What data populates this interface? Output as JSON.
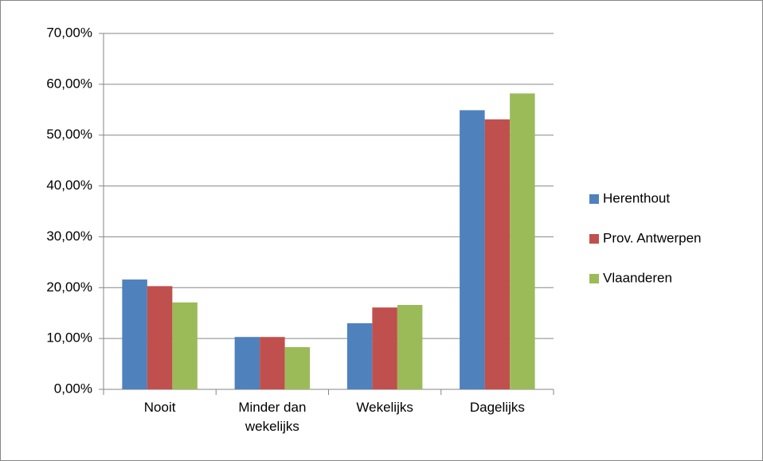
{
  "chart_data": {
    "type": "bar",
    "categories": [
      "Nooit",
      "Minder dan wekelijks",
      "Wekelijks",
      "Dagelijks"
    ],
    "series": [
      {
        "name": "Herenthout",
        "color": "#4f81bd",
        "values": [
          21.6,
          10.3,
          13.0,
          54.9
        ]
      },
      {
        "name": "Prov. Antwerpen",
        "color": "#c0504d",
        "values": [
          20.3,
          10.3,
          16.1,
          53.1
        ]
      },
      {
        "name": "Vlaanderen",
        "color": "#9bbb59",
        "values": [
          17.1,
          8.3,
          16.6,
          58.2
        ]
      }
    ],
    "ylim": [
      0,
      70
    ],
    "yticks": [
      {
        "value": 0,
        "label": "0,00%"
      },
      {
        "value": 10,
        "label": "10,00%"
      },
      {
        "value": 20,
        "label": "20,00%"
      },
      {
        "value": 30,
        "label": "30,00%"
      },
      {
        "value": 40,
        "label": "40,00%"
      },
      {
        "value": 50,
        "label": "50,00%"
      },
      {
        "value": 60,
        "label": "60,00%"
      },
      {
        "value": 70,
        "label": "70,00%"
      }
    ],
    "grid": true,
    "legend": "right"
  }
}
